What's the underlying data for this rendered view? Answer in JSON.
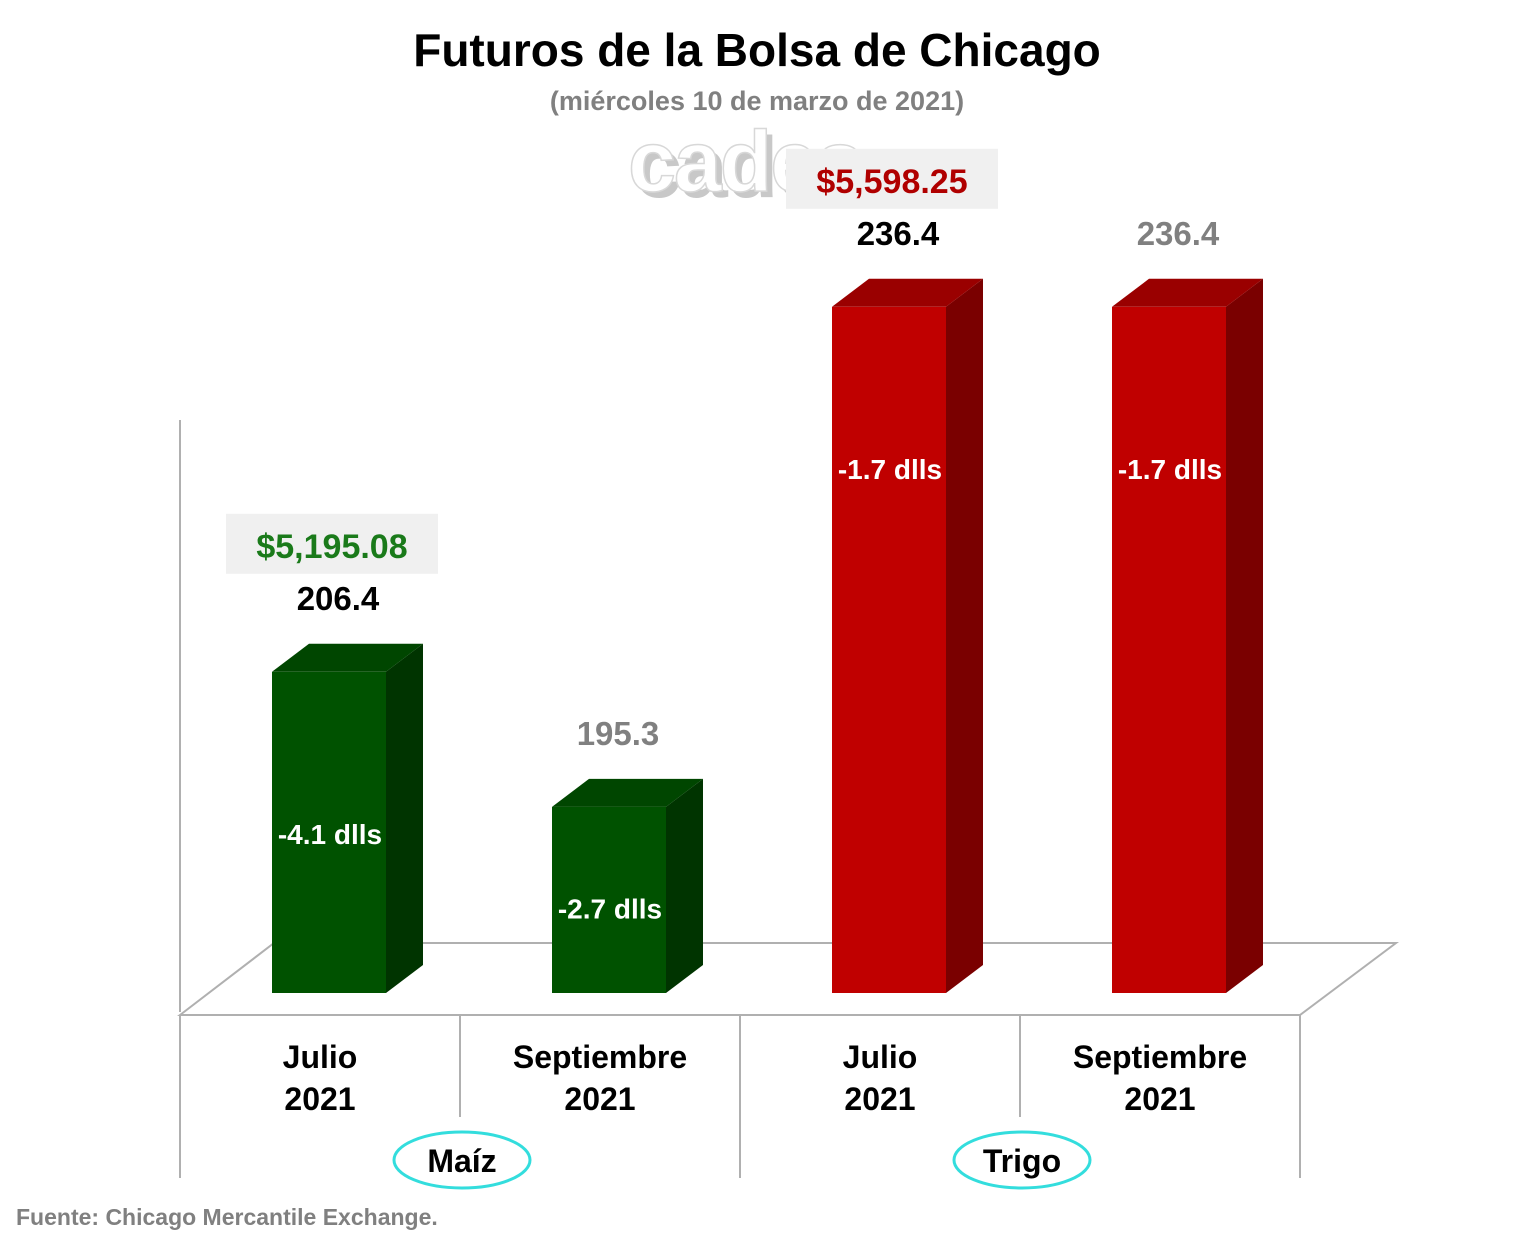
{
  "title": "Futuros de la Bolsa de Chicago",
  "subtitle": "(miércoles 10 de marzo de 2021)",
  "logo_text": "cades",
  "source": "Fuente: Chicago Mercantile Exchange.",
  "colors": {
    "maiz_front": "#005200",
    "maiz_side": "#003400",
    "maiz_top": "#004600",
    "trigo_front": "#c00000",
    "trigo_side": "#7a0000",
    "trigo_top": "#9a0000",
    "value_dark": "#000000",
    "value_gray": "#808080",
    "price_green": "#1a7a1a",
    "price_red": "#b00000",
    "price_box": "#f0f0f0",
    "group_ellipse": "#33dddd",
    "axis": "#b0b0b0"
  },
  "chart_data": {
    "type": "bar",
    "title": "Futuros de la Bolsa de Chicago",
    "subtitle": "(miércoles 10 de marzo de 2021)",
    "ylim": [
      180,
      240
    ],
    "grid": false,
    "groups": [
      {
        "name": "Maíz",
        "price": "$5,195.08",
        "color": "maiz",
        "bars": [
          {
            "category": [
              "Julio",
              "2021"
            ],
            "value": 206.4,
            "value_label": "206.4",
            "value_style": "dark",
            "change": "-4.1 dlls"
          },
          {
            "category": [
              "Septiembre",
              "2021"
            ],
            "value": 195.3,
            "value_label": "195.3",
            "value_style": "gray",
            "change": "-2.7 dlls"
          }
        ]
      },
      {
        "name": "Trigo",
        "price": "$5,598.25",
        "color": "trigo",
        "bars": [
          {
            "category": [
              "Julio",
              "2021"
            ],
            "value": 236.4,
            "value_label": "236.4",
            "value_style": "dark",
            "change": "-1.7 dlls"
          },
          {
            "category": [
              "Septiembre",
              "2021"
            ],
            "value": 236.4,
            "value_label": "236.4",
            "value_style": "gray",
            "change": "-1.7 dlls"
          }
        ]
      }
    ]
  }
}
